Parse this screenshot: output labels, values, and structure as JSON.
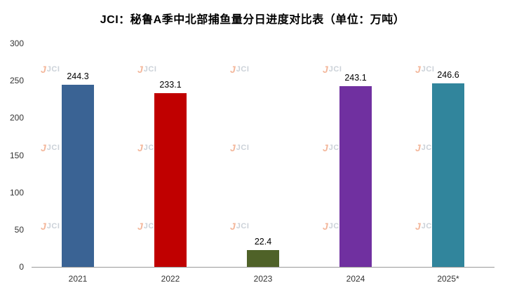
{
  "chart_data": {
    "type": "bar",
    "title": "JCI：秘鲁A季中北部捕鱼量分日进度对比表（单位：万吨）",
    "categories": [
      "2021",
      "2022",
      "2023",
      "2024",
      "2025*"
    ],
    "values": [
      244.3,
      233.1,
      22.4,
      243.1,
      246.6
    ],
    "value_labels": [
      "244.3",
      "233.1",
      "22.4",
      "243.1",
      "246.6"
    ],
    "bar_colors": [
      "#3A6394",
      "#C00000",
      "#4F6228",
      "#7030A0",
      "#31859C"
    ],
    "ylim": [
      0,
      300
    ],
    "yticks": [
      0,
      50,
      100,
      150,
      200,
      250,
      300
    ],
    "xlabel": "",
    "ylabel": "",
    "grid": false,
    "legend": "none"
  },
  "watermark": {
    "text": "JCI",
    "mark": "J"
  }
}
